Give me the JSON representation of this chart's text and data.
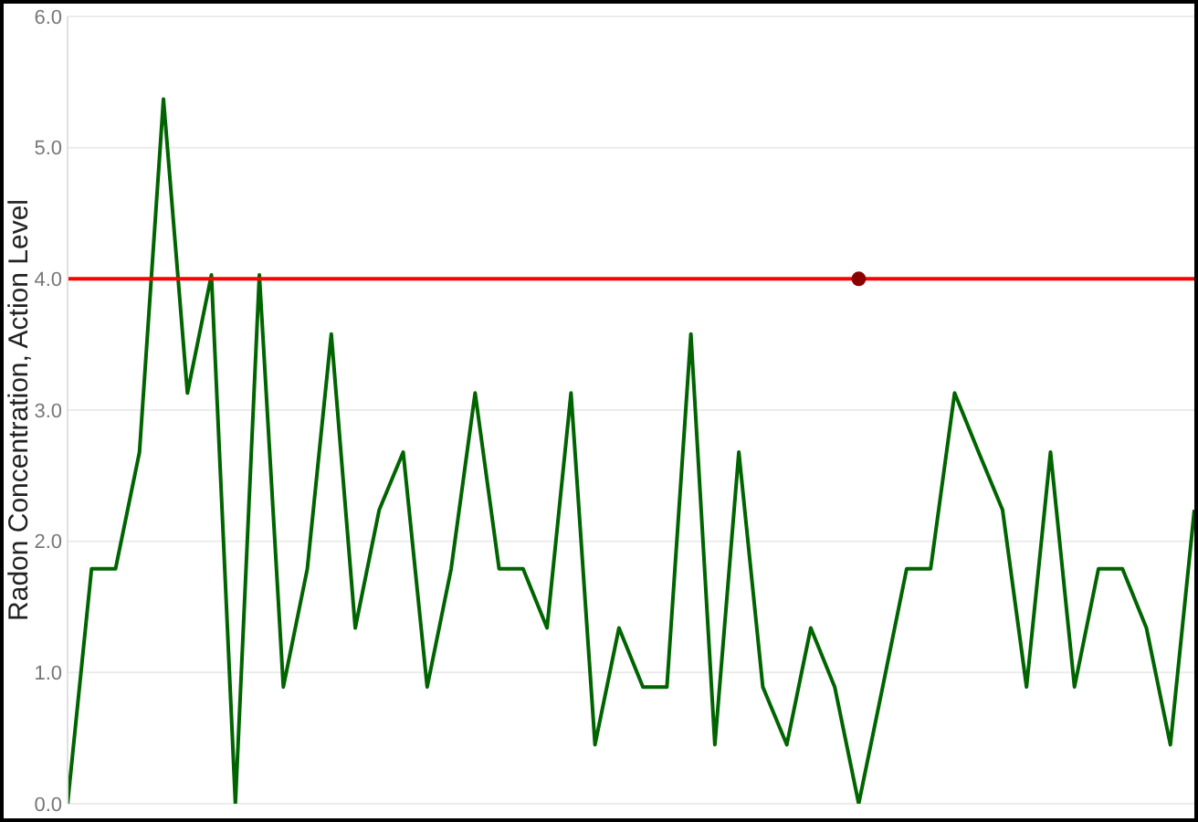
{
  "chart_data": {
    "type": "line",
    "ylabel": "Radon Concentration, Action Level",
    "categories": [
      null,
      null,
      null,
      null,
      null,
      null,
      null,
      null,
      null,
      null,
      null,
      null,
      null,
      null,
      null,
      null,
      null,
      null,
      null,
      null,
      null,
      null,
      null,
      null,
      null,
      null,
      null,
      null,
      null,
      null,
      null,
      null,
      null,
      null,
      null,
      null,
      null,
      null,
      null,
      null,
      null,
      null,
      null,
      null,
      null,
      null,
      null,
      null
    ],
    "series": [
      {
        "color": "#006400",
        "values": [
          0,
          1.79,
          1.79,
          2.68,
          5.37,
          3.13,
          4.03,
          0,
          4.03,
          0.89,
          1.79,
          3.58,
          1.34,
          2.24,
          2.68,
          0.89,
          1.79,
          3.13,
          1.79,
          1.79,
          1.34,
          3.13,
          0.45,
          1.34,
          0.89,
          0.89,
          3.58,
          0.45,
          2.68,
          0.89,
          0.45,
          1.34,
          0.89,
          0,
          0.89,
          1.79,
          1.79,
          3.13,
          2.68,
          2.24,
          0.89,
          2.68,
          0.89,
          1.79,
          1.79,
          1.34,
          0.45,
          2.24
        ]
      },
      {
        "color": "#ff0000",
        "values": [
          4,
          4,
          4,
          4,
          4,
          4,
          4,
          4,
          4,
          4,
          4,
          4,
          4,
          4,
          4,
          4,
          4,
          4,
          4,
          4,
          4,
          4,
          4,
          4,
          4,
          4,
          4,
          4,
          4,
          4,
          4,
          4,
          4,
          4,
          4,
          4,
          4,
          4,
          4,
          4,
          4,
          4,
          4,
          4,
          4,
          4,
          4,
          4
        ]
      },
      {
        "type": "scatter",
        "color": "#8b0000",
        "marker": "circle",
        "values": [
          null,
          null,
          null,
          null,
          null,
          null,
          null,
          null,
          null,
          null,
          null,
          null,
          null,
          null,
          null,
          null,
          null,
          null,
          null,
          null,
          null,
          null,
          null,
          null,
          null,
          null,
          null,
          null,
          null,
          null,
          null,
          null,
          null,
          4,
          null,
          null,
          null,
          null,
          null,
          null,
          null,
          null,
          null,
          null,
          null,
          null,
          null,
          null
        ]
      }
    ],
    "ylim": [
      0,
      6
    ],
    "yticks": [
      {
        "value": 0,
        "label": "0.0"
      },
      {
        "value": 1,
        "label": "1.0"
      },
      {
        "value": 2,
        "label": "2.0"
      },
      {
        "value": 3,
        "label": "3.0"
      },
      {
        "value": 4,
        "label": "4.0"
      },
      {
        "value": 5,
        "label": "5.0"
      },
      {
        "value": 6,
        "label": "6.0"
      }
    ],
    "grid": "y",
    "tick_labels": "y"
  }
}
